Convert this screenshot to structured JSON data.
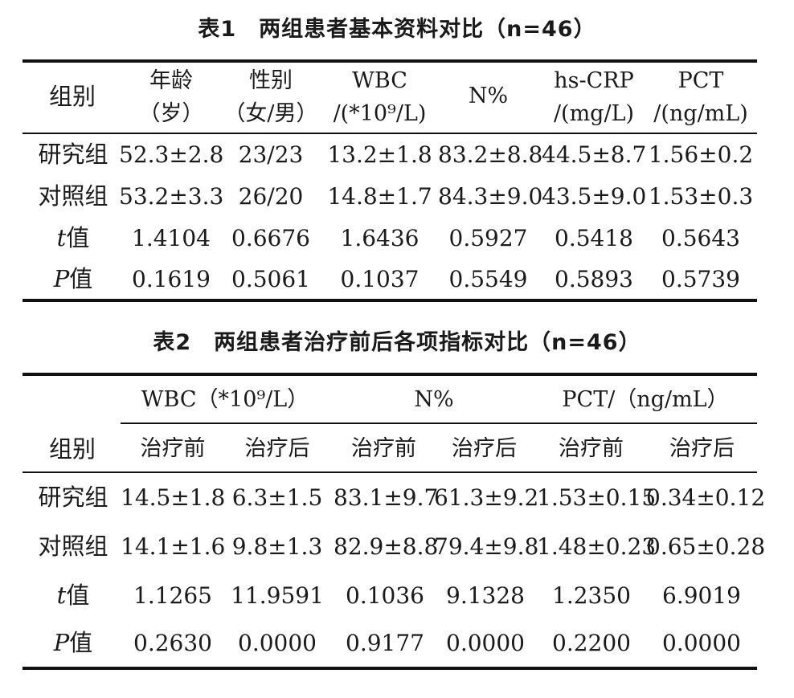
{
  "table1": {
    "title": "表1　两组患者基本资料对比（n=46）",
    "header": {
      "group": "组别",
      "age_1": "年龄",
      "age_2": "（岁）",
      "sex_1": "性别",
      "sex_2": "（女/男）",
      "wbc_1": "WBC",
      "wbc_2": "/(*10⁹/L)",
      "n": "N%",
      "crp_1": "hs-CRP",
      "crp_2": "/(mg/L)",
      "pct_1": "PCT",
      "pct_2": "/(ng/mL)"
    },
    "rows": [
      {
        "label": "研究组",
        "cells": [
          "52.3±2.8",
          "23/23",
          "13.2±1.8",
          "83.2±8.8",
          "44.5±8.7",
          "1.56±0.2"
        ]
      },
      {
        "label": "对照组",
        "cells": [
          "53.2±3.3",
          "26/20",
          "14.8±1.7",
          "84.3±9.0",
          "43.5±9.0",
          "1.53±0.3"
        ]
      },
      {
        "label_italic": "t",
        "label_rest": "值",
        "cells": [
          "1.4104",
          "0.6676",
          "1.6436",
          "0.5927",
          "0.5418",
          "0.5643"
        ]
      },
      {
        "label_italic": "P",
        "label_rest": "值",
        "cells": [
          "0.1619",
          "0.5061",
          "0.1037",
          "0.5549",
          "0.5893",
          "0.5739"
        ]
      }
    ]
  },
  "table2": {
    "title": "表2　两组患者治疗前后各项指标对比（n=46）",
    "header": {
      "group": "组别",
      "wbc": "WBC（*10⁹/L）",
      "n": "N%",
      "pct": "PCT/（ng/mL）",
      "before": "治疗前",
      "after": "治疗后"
    },
    "rows": [
      {
        "label": "研究组",
        "cells": [
          "14.5±1.8",
          "6.3±1.5",
          "83.1±9.7",
          "61.3±9.2",
          "1.53±0.15",
          "0.34±0.12"
        ]
      },
      {
        "label": "对照组",
        "cells": [
          "14.1±1.6",
          "9.8±1.3",
          "82.9±8.8",
          "79.4±9.8",
          "1.48±0.23",
          "0.65±0.28"
        ]
      },
      {
        "label_italic": "t",
        "label_rest": "值",
        "cells": [
          "1.1265",
          "11.9591",
          "0.1036",
          "9.1328",
          "1.2350",
          "6.9019"
        ]
      },
      {
        "label_italic": "P",
        "label_rest": "值",
        "cells": [
          "0.2630",
          "0.0000",
          "0.9177",
          "0.0000",
          "0.2200",
          "0.0000"
        ]
      }
    ]
  }
}
